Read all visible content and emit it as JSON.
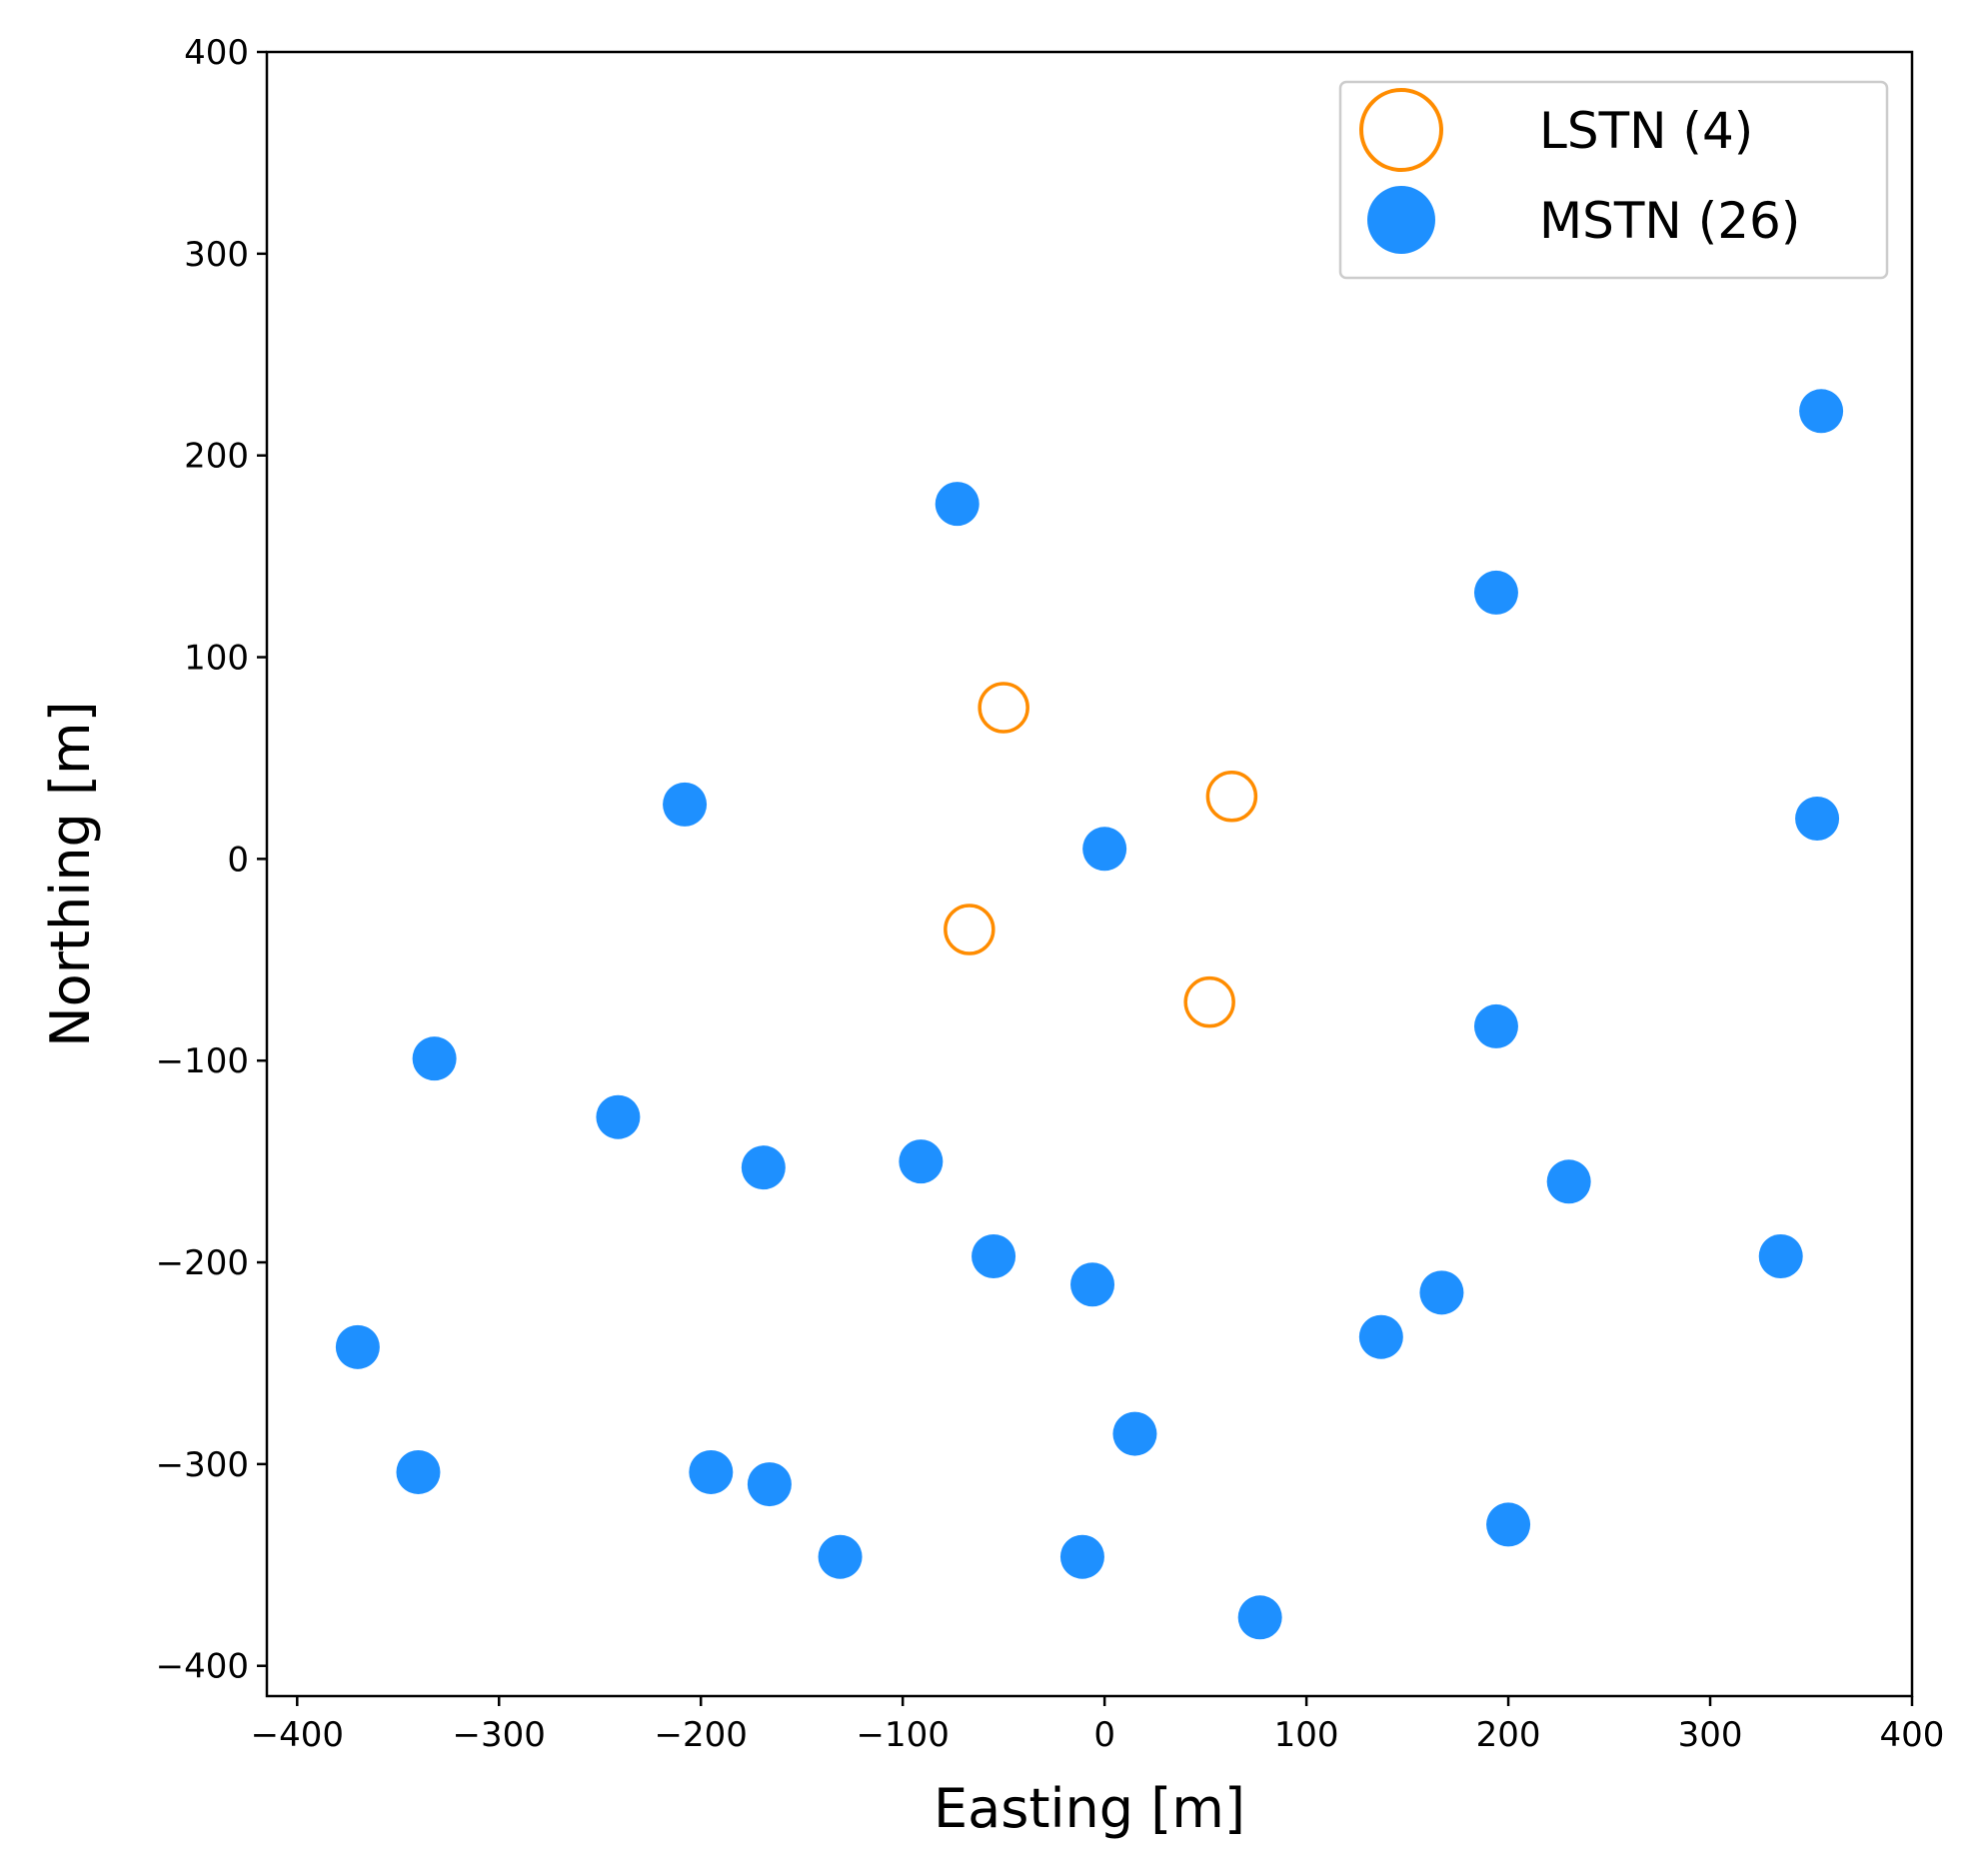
{
  "chart_data": {
    "type": "scatter",
    "title": "",
    "xlabel": "Easting [m]",
    "ylabel": "Northing [m]",
    "xlim": [
      -415,
      400
    ],
    "ylim": [
      -415,
      400
    ],
    "xticks": [
      -400,
      -300,
      -200,
      -100,
      0,
      100,
      200,
      300,
      400
    ],
    "yticks": [
      -400,
      -300,
      -200,
      -100,
      0,
      100,
      200,
      300,
      400
    ],
    "xtick_labels": [
      "−400",
      "−300",
      "−200",
      "−100",
      "0",
      "100",
      "200",
      "300",
      "400"
    ],
    "ytick_labels": [
      "−400",
      "−300",
      "−200",
      "−100",
      "0",
      "100",
      "200",
      "300",
      "400"
    ],
    "grid": false,
    "legend_position": "top-right",
    "series": [
      {
        "name": "LSTN (4)",
        "marker": "open-circle",
        "color": "#FF8C00",
        "points": [
          {
            "x": -50,
            "y": 75
          },
          {
            "x": 63,
            "y": 31
          },
          {
            "x": -67,
            "y": -35
          },
          {
            "x": 52,
            "y": -71
          }
        ]
      },
      {
        "name": "MSTN (26)",
        "marker": "filled-circle",
        "color": "#1E90FF",
        "points": [
          {
            "x": 355,
            "y": 222
          },
          {
            "x": -73,
            "y": 176
          },
          {
            "x": 194,
            "y": 132
          },
          {
            "x": -208,
            "y": 27
          },
          {
            "x": 0,
            "y": 5
          },
          {
            "x": 353,
            "y": 20
          },
          {
            "x": 194,
            "y": -83
          },
          {
            "x": -332,
            "y": -99
          },
          {
            "x": -241,
            "y": -128
          },
          {
            "x": -169,
            "y": -153
          },
          {
            "x": -91,
            "y": -150
          },
          {
            "x": 230,
            "y": -160
          },
          {
            "x": -55,
            "y": -197
          },
          {
            "x": 335,
            "y": -197
          },
          {
            "x": -6,
            "y": -211
          },
          {
            "x": 167,
            "y": -215
          },
          {
            "x": 137,
            "y": -237
          },
          {
            "x": -370,
            "y": -242
          },
          {
            "x": 15,
            "y": -285
          },
          {
            "x": -340,
            "y": -304
          },
          {
            "x": -195,
            "y": -304
          },
          {
            "x": -166,
            "y": -310
          },
          {
            "x": 200,
            "y": -330
          },
          {
            "x": -131,
            "y": -346
          },
          {
            "x": -11,
            "y": -346
          },
          {
            "x": 77,
            "y": -376
          }
        ]
      }
    ]
  }
}
